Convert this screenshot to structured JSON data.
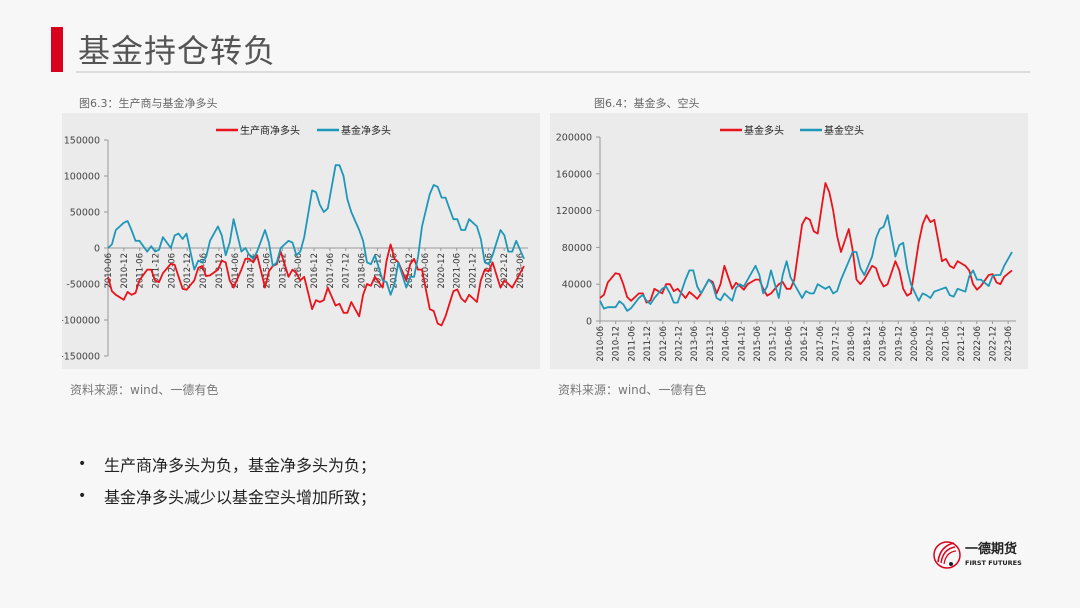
{
  "page": {
    "title": "基金持仓转负",
    "accent_color": "#d9001b"
  },
  "figures": [
    {
      "caption": "图6.3：生产商与基金净多头",
      "source": "资料来源：wind、一德有色"
    },
    {
      "caption": "图6.4：基金多、空头",
      "source": "资料来源：wind、一德有色"
    }
  ],
  "bullets": [
    "生产商净多头为负，基金净多头为负；",
    "基金净多头减少以基金空头增加所致；"
  ],
  "logo": {
    "name_cn": "一德期货",
    "name_en": "FIRST FUTURES",
    "icon": "first-futures-logo-icon"
  },
  "chart_data": [
    {
      "type": "line",
      "title": "图6.3：生产商与基金净多头",
      "xlabel": "",
      "ylabel": "",
      "ylim": [
        -150000,
        150000
      ],
      "yticks": [
        150000,
        100000,
        50000,
        0,
        -50000,
        -100000,
        -150000
      ],
      "grid": false,
      "legend_position": "top",
      "categories": [
        "2010-06",
        "2010-12",
        "2011-06",
        "2011-12",
        "2012-06",
        "2012-12",
        "2013-06",
        "2013-12",
        "2014-06",
        "2014-12",
        "2015-06",
        "2015-12",
        "2016-06",
        "2016-12",
        "2017-06",
        "2017-12",
        "2018-06",
        "2018-12",
        "2019-06",
        "2019-12",
        "2020-06",
        "2020-12",
        "2021-06",
        "2021-12",
        "2022-06",
        "2022-12",
        "2023-06"
      ],
      "x": [
        "2010-06",
        "2010-09",
        "2010-12",
        "2011-03",
        "2011-06",
        "2011-09",
        "2011-12",
        "2012-03",
        "2012-06",
        "2012-09",
        "2012-12",
        "2013-03",
        "2013-06",
        "2013-09",
        "2013-12",
        "2014-03",
        "2014-06",
        "2014-09",
        "2014-12",
        "2015-03",
        "2015-06",
        "2015-09",
        "2015-12",
        "2016-03",
        "2016-06",
        "2016-09",
        "2016-12",
        "2017-03",
        "2017-06",
        "2017-09",
        "2017-12",
        "2018-03",
        "2018-06",
        "2018-09",
        "2018-12",
        "2019-03",
        "2019-06",
        "2019-09",
        "2019-12",
        "2020-03",
        "2020-06",
        "2020-09",
        "2020-12",
        "2021-03",
        "2021-06",
        "2021-09",
        "2021-12",
        "2022-03",
        "2022-06",
        "2022-09",
        "2022-12",
        "2023-03",
        "2023-06",
        "2023-09"
      ],
      "series": [
        {
          "name": "生产商净多头",
          "color": "#e8131b",
          "values": [
            -40000,
            -65000,
            -72000,
            -65000,
            -45000,
            -30000,
            -45000,
            -35000,
            -22000,
            -40000,
            -58000,
            -45000,
            -25000,
            -38000,
            -30000,
            -20000,
            -55000,
            -30000,
            -15000,
            -10000,
            -55000,
            -25000,
            -5000,
            -40000,
            -35000,
            -40000,
            -85000,
            -75000,
            -55000,
            -80000,
            -90000,
            -75000,
            -95000,
            -50000,
            -40000,
            -55000,
            5000,
            -20000,
            -45000,
            -15000,
            -30000,
            -85000,
            -105000,
            -95000,
            -60000,
            -70000,
            -65000,
            -75000,
            -30000,
            -20000,
            -55000,
            -50000,
            -45000,
            -25000
          ]
        },
        {
          "name": "基金净多头",
          "color": "#1f97b8",
          "values": [
            0,
            25000,
            35000,
            25000,
            10000,
            -5000,
            -5000,
            15000,
            0,
            20000,
            20000,
            -30000,
            -20000,
            10000,
            30000,
            -10000,
            40000,
            -5000,
            -10000,
            -5000,
            25000,
            -25000,
            0,
            10000,
            -10000,
            15000,
            80000,
            60000,
            55000,
            115000,
            100000,
            50000,
            25000,
            -20000,
            -10000,
            -45000,
            -65000,
            -20000,
            -55000,
            -40000,
            30000,
            75000,
            85000,
            70000,
            40000,
            25000,
            40000,
            30000,
            -20000,
            -10000,
            25000,
            -5000,
            10000,
            -15000
          ]
        }
      ]
    },
    {
      "type": "line",
      "title": "图6.4：基金多、空头",
      "xlabel": "",
      "ylabel": "",
      "ylim": [
        0,
        200000
      ],
      "yticks": [
        200000,
        160000,
        120000,
        80000,
        40000,
        0
      ],
      "grid": false,
      "legend_position": "top",
      "categories": [
        "2010-06",
        "2010-12",
        "2011-06",
        "2011-12",
        "2012-06",
        "2012-12",
        "2013-06",
        "2013-12",
        "2014-06",
        "2014-12",
        "2015-06",
        "2015-12",
        "2016-06",
        "2016-12",
        "2017-06",
        "2017-12",
        "2018-06",
        "2018-12",
        "2019-06",
        "2019-12",
        "2020-06",
        "2020-12",
        "2021-06",
        "2021-12",
        "2022-06",
        "2022-12",
        "2023-06"
      ],
      "x": [
        "2010-06",
        "2010-09",
        "2010-12",
        "2011-03",
        "2011-06",
        "2011-09",
        "2011-12",
        "2012-03",
        "2012-06",
        "2012-09",
        "2012-12",
        "2013-03",
        "2013-06",
        "2013-09",
        "2013-12",
        "2014-03",
        "2014-06",
        "2014-09",
        "2014-12",
        "2015-03",
        "2015-06",
        "2015-09",
        "2015-12",
        "2016-03",
        "2016-06",
        "2016-09",
        "2016-12",
        "2017-03",
        "2017-06",
        "2017-09",
        "2017-12",
        "2018-03",
        "2018-06",
        "2018-09",
        "2018-12",
        "2019-03",
        "2019-06",
        "2019-09",
        "2019-12",
        "2020-03",
        "2020-06",
        "2020-09",
        "2020-12",
        "2021-03",
        "2021-06",
        "2021-09",
        "2021-12",
        "2022-03",
        "2022-06",
        "2022-09",
        "2022-12",
        "2023-03",
        "2023-06",
        "2023-09"
      ],
      "series": [
        {
          "name": "基金多头",
          "color": "#e8131b",
          "values": [
            25000,
            42000,
            52000,
            40000,
            22000,
            30000,
            20000,
            35000,
            30000,
            40000,
            35000,
            25000,
            28000,
            30000,
            45000,
            30000,
            60000,
            35000,
            38000,
            40000,
            45000,
            35000,
            30000,
            40000,
            35000,
            45000,
            105000,
            110000,
            95000,
            150000,
            120000,
            75000,
            100000,
            45000,
            45000,
            60000,
            45000,
            40000,
            65000,
            35000,
            30000,
            85000,
            115000,
            110000,
            65000,
            60000,
            65000,
            60000,
            40000,
            38000,
            50000,
            42000,
            48000,
            55000
          ]
        },
        {
          "name": "基金空头",
          "color": "#1f97b8",
          "values": [
            22000,
            15000,
            15000,
            18000,
            14000,
            25000,
            22000,
            25000,
            35000,
            30000,
            20000,
            45000,
            55000,
            30000,
            45000,
            25000,
            30000,
            22000,
            40000,
            45000,
            60000,
            30000,
            55000,
            25000,
            65000,
            40000,
            25000,
            30000,
            40000,
            35000,
            30000,
            45000,
            65000,
            75000,
            50000,
            70000,
            100000,
            115000,
            70000,
            85000,
            40000,
            22000,
            28000,
            32000,
            35000,
            28000,
            35000,
            32000,
            55000,
            45000,
            38000,
            50000,
            60000,
            75000
          ]
        }
      ]
    }
  ]
}
